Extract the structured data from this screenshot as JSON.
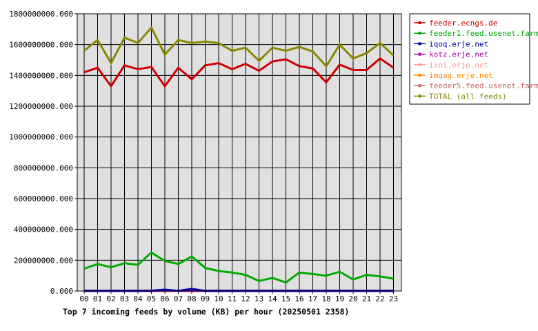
{
  "chart_data": {
    "type": "line",
    "title": "Top 7 incoming feeds by volume (KB) per hour (20250501 2358)",
    "xlabel": "",
    "ylabel": "",
    "categories": [
      "00",
      "01",
      "02",
      "03",
      "04",
      "05",
      "06",
      "07",
      "08",
      "09",
      "10",
      "11",
      "12",
      "13",
      "14",
      "15",
      "16",
      "17",
      "18",
      "19",
      "20",
      "21",
      "22",
      "23"
    ],
    "ylim": [
      0,
      1800000000
    ],
    "yticks": [
      0,
      200000000,
      400000000,
      600000000,
      800000000,
      1000000000,
      1200000000,
      1400000000,
      1600000000,
      1800000000
    ],
    "ytick_labels": [
      "0.000",
      "200000000.000",
      "400000000.000",
      "600000000.000",
      "800000000.000",
      "1000000000.000",
      "1200000000.000",
      "1400000000.000",
      "1600000000.000",
      "1800000000.000"
    ],
    "grid": true,
    "legend_position": "right",
    "series": [
      {
        "name": "feeder.ecngs.de",
        "color": "#cc0000",
        "values": [
          1420000000,
          1450000000,
          1330000000,
          1465000000,
          1440000000,
          1455000000,
          1330000000,
          1450000000,
          1375000000,
          1465000000,
          1480000000,
          1440000000,
          1475000000,
          1430000000,
          1490000000,
          1505000000,
          1460000000,
          1445000000,
          1355000000,
          1470000000,
          1435000000,
          1435000000,
          1510000000,
          1450000000
        ]
      },
      {
        "name": "feeder1.feed.usenet.farm",
        "color": "#00aa00",
        "values": [
          145000000,
          175000000,
          155000000,
          180000000,
          170000000,
          250000000,
          195000000,
          175000000,
          225000000,
          150000000,
          130000000,
          120000000,
          105000000,
          65000000,
          85000000,
          55000000,
          120000000,
          110000000,
          100000000,
          125000000,
          75000000,
          105000000,
          95000000,
          80000000
        ]
      },
      {
        "name": "iqoq.erje.net",
        "color": "#0000aa",
        "values": [
          1000000,
          1000000,
          1000000,
          1000000,
          1000000,
          2000000,
          9000000,
          1000000,
          14000000,
          1000000,
          1000000,
          1000000,
          1000000,
          1000000,
          1000000,
          1000000,
          1000000,
          1000000,
          1000000,
          1000000,
          1000000,
          1000000,
          1000000,
          1000000
        ]
      },
      {
        "name": "kotz.erje.net",
        "color": "#aa00aa",
        "values": [
          1000000,
          1000000,
          1000000,
          1000000,
          1000000,
          1000000,
          1000000,
          1000000,
          1000000,
          1000000,
          1000000,
          1000000,
          1000000,
          1000000,
          1000000,
          1000000,
          1000000,
          1000000,
          1000000,
          1000000,
          1000000,
          1000000,
          1000000,
          1000000
        ]
      },
      {
        "name": "ixni.erje.net",
        "color": "#ff9999",
        "values": [
          1000000,
          1000000,
          1000000,
          1000000,
          1000000,
          1000000,
          1000000,
          1000000,
          1000000,
          1000000,
          1000000,
          1000000,
          1000000,
          1000000,
          1000000,
          1000000,
          1000000,
          1000000,
          1000000,
          1000000,
          1000000,
          1000000,
          1000000,
          1000000
        ]
      },
      {
        "name": "imqag.erje.net",
        "color": "#ff8800",
        "values": [
          2000000,
          2000000,
          2000000,
          2000000,
          2000000,
          3000000,
          2000000,
          2000000,
          2000000,
          2000000,
          2000000,
          2000000,
          2000000,
          2000000,
          2000000,
          2000000,
          2000000,
          2000000,
          2000000,
          2000000,
          2000000,
          2000000,
          2000000,
          2000000
        ]
      },
      {
        "name": "feeder5.feed.usenet.farm",
        "color": "#cc6666",
        "values": [
          2000000,
          2000000,
          2000000,
          2000000,
          2000000,
          2000000,
          2000000,
          2000000,
          2000000,
          2000000,
          2000000,
          2000000,
          2000000,
          2000000,
          2000000,
          2000000,
          2000000,
          2000000,
          2000000,
          2000000,
          2000000,
          2000000,
          2000000,
          2000000
        ]
      },
      {
        "name": "TOTAL (all feeds)",
        "color": "#888800",
        "values": [
          1560000000,
          1630000000,
          1480000000,
          1645000000,
          1610000000,
          1710000000,
          1535000000,
          1630000000,
          1610000000,
          1620000000,
          1610000000,
          1560000000,
          1580000000,
          1495000000,
          1580000000,
          1560000000,
          1585000000,
          1555000000,
          1460000000,
          1600000000,
          1510000000,
          1545000000,
          1610000000,
          1530000000
        ]
      }
    ]
  }
}
